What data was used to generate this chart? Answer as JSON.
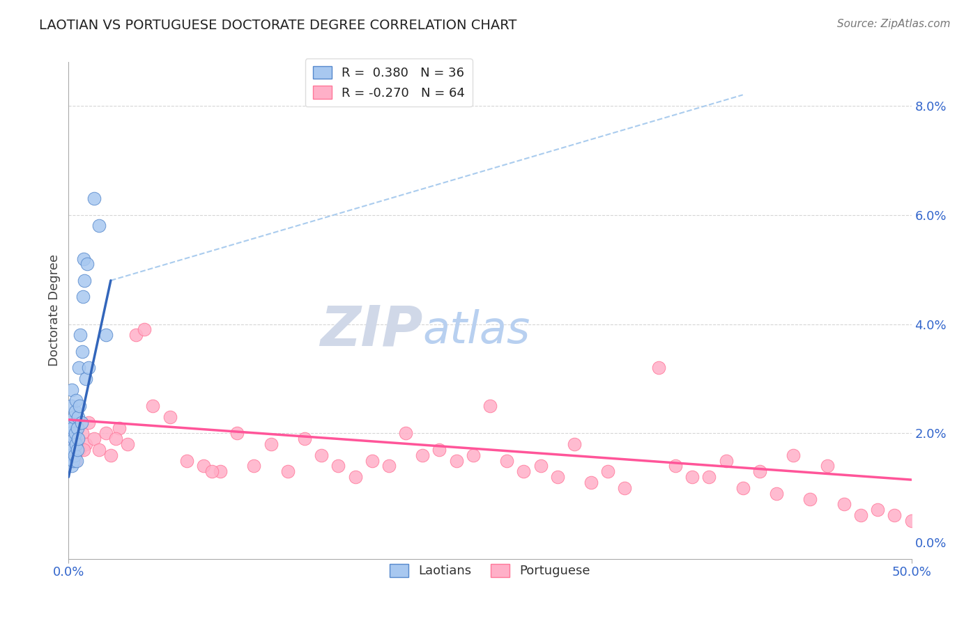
{
  "title": "LAOTIAN VS PORTUGUESE DOCTORATE DEGREE CORRELATION CHART",
  "source": "Source: ZipAtlas.com",
  "ylabel": "Doctorate Degree",
  "right_ytick_vals": [
    0.0,
    2.0,
    4.0,
    6.0,
    8.0
  ],
  "xlim": [
    0.0,
    50.0
  ],
  "ylim": [
    -0.3,
    8.8
  ],
  "ymin_data": 0.0,
  "ymax_data": 8.0,
  "blue_fill": "#A8C8F0",
  "blue_edge": "#5588CC",
  "blue_line": "#3366BB",
  "pink_fill": "#FFB0C8",
  "pink_edge": "#FF7799",
  "pink_line": "#FF5599",
  "dash_color": "#AACCEE",
  "grid_color": "#CCCCCC",
  "laotian_x": [
    0.05,
    0.08,
    0.1,
    0.12,
    0.15,
    0.18,
    0.2,
    0.22,
    0.25,
    0.28,
    0.3,
    0.32,
    0.35,
    0.38,
    0.4,
    0.42,
    0.45,
    0.48,
    0.5,
    0.52,
    0.55,
    0.58,
    0.6,
    0.65,
    0.7,
    0.75,
    0.8,
    0.85,
    0.9,
    0.95,
    1.0,
    1.1,
    1.2,
    1.5,
    1.8,
    2.2
  ],
  "laotian_y": [
    1.8,
    2.2,
    2.0,
    1.6,
    2.5,
    1.4,
    2.8,
    1.7,
    2.1,
    1.5,
    1.9,
    2.3,
    1.6,
    2.4,
    2.0,
    1.8,
    2.6,
    1.5,
    1.7,
    2.1,
    2.3,
    1.9,
    3.2,
    2.5,
    3.8,
    2.2,
    3.5,
    4.5,
    5.2,
    4.8,
    3.0,
    5.1,
    3.2,
    6.3,
    5.8,
    3.8
  ],
  "portuguese_x": [
    0.2,
    0.35,
    0.5,
    0.65,
    0.8,
    1.0,
    1.2,
    1.5,
    1.8,
    2.2,
    2.5,
    3.0,
    3.5,
    4.0,
    5.0,
    6.0,
    7.0,
    8.0,
    9.0,
    10.0,
    11.0,
    12.0,
    13.0,
    14.0,
    15.0,
    16.0,
    17.0,
    18.0,
    19.0,
    20.0,
    21.0,
    22.0,
    23.0,
    24.0,
    25.0,
    26.0,
    27.0,
    28.0,
    29.0,
    30.0,
    31.0,
    32.0,
    33.0,
    35.0,
    36.0,
    37.0,
    38.0,
    39.0,
    40.0,
    41.0,
    42.0,
    43.0,
    44.0,
    45.0,
    46.0,
    47.0,
    48.0,
    49.0,
    50.0,
    0.4,
    0.9,
    2.8,
    4.5,
    8.5
  ],
  "portuguese_y": [
    1.9,
    1.6,
    2.1,
    1.7,
    2.0,
    1.8,
    2.2,
    1.9,
    1.7,
    2.0,
    1.6,
    2.1,
    1.8,
    3.8,
    2.5,
    2.3,
    1.5,
    1.4,
    1.3,
    2.0,
    1.4,
    1.8,
    1.3,
    1.9,
    1.6,
    1.4,
    1.2,
    1.5,
    1.4,
    2.0,
    1.6,
    1.7,
    1.5,
    1.6,
    2.5,
    1.5,
    1.3,
    1.4,
    1.2,
    1.8,
    1.1,
    1.3,
    1.0,
    3.2,
    1.4,
    1.2,
    1.2,
    1.5,
    1.0,
    1.3,
    0.9,
    1.6,
    0.8,
    1.4,
    0.7,
    0.5,
    0.6,
    0.5,
    0.4,
    1.5,
    1.7,
    1.9,
    3.9,
    1.3
  ],
  "blue_line_x": [
    0.0,
    2.5
  ],
  "blue_line_y": [
    1.2,
    4.8
  ],
  "pink_line_x": [
    0.0,
    50.0
  ],
  "pink_line_y": [
    2.25,
    1.15
  ],
  "diag_line_x": [
    2.5,
    40.0
  ],
  "diag_line_y": [
    4.8,
    8.2
  ]
}
